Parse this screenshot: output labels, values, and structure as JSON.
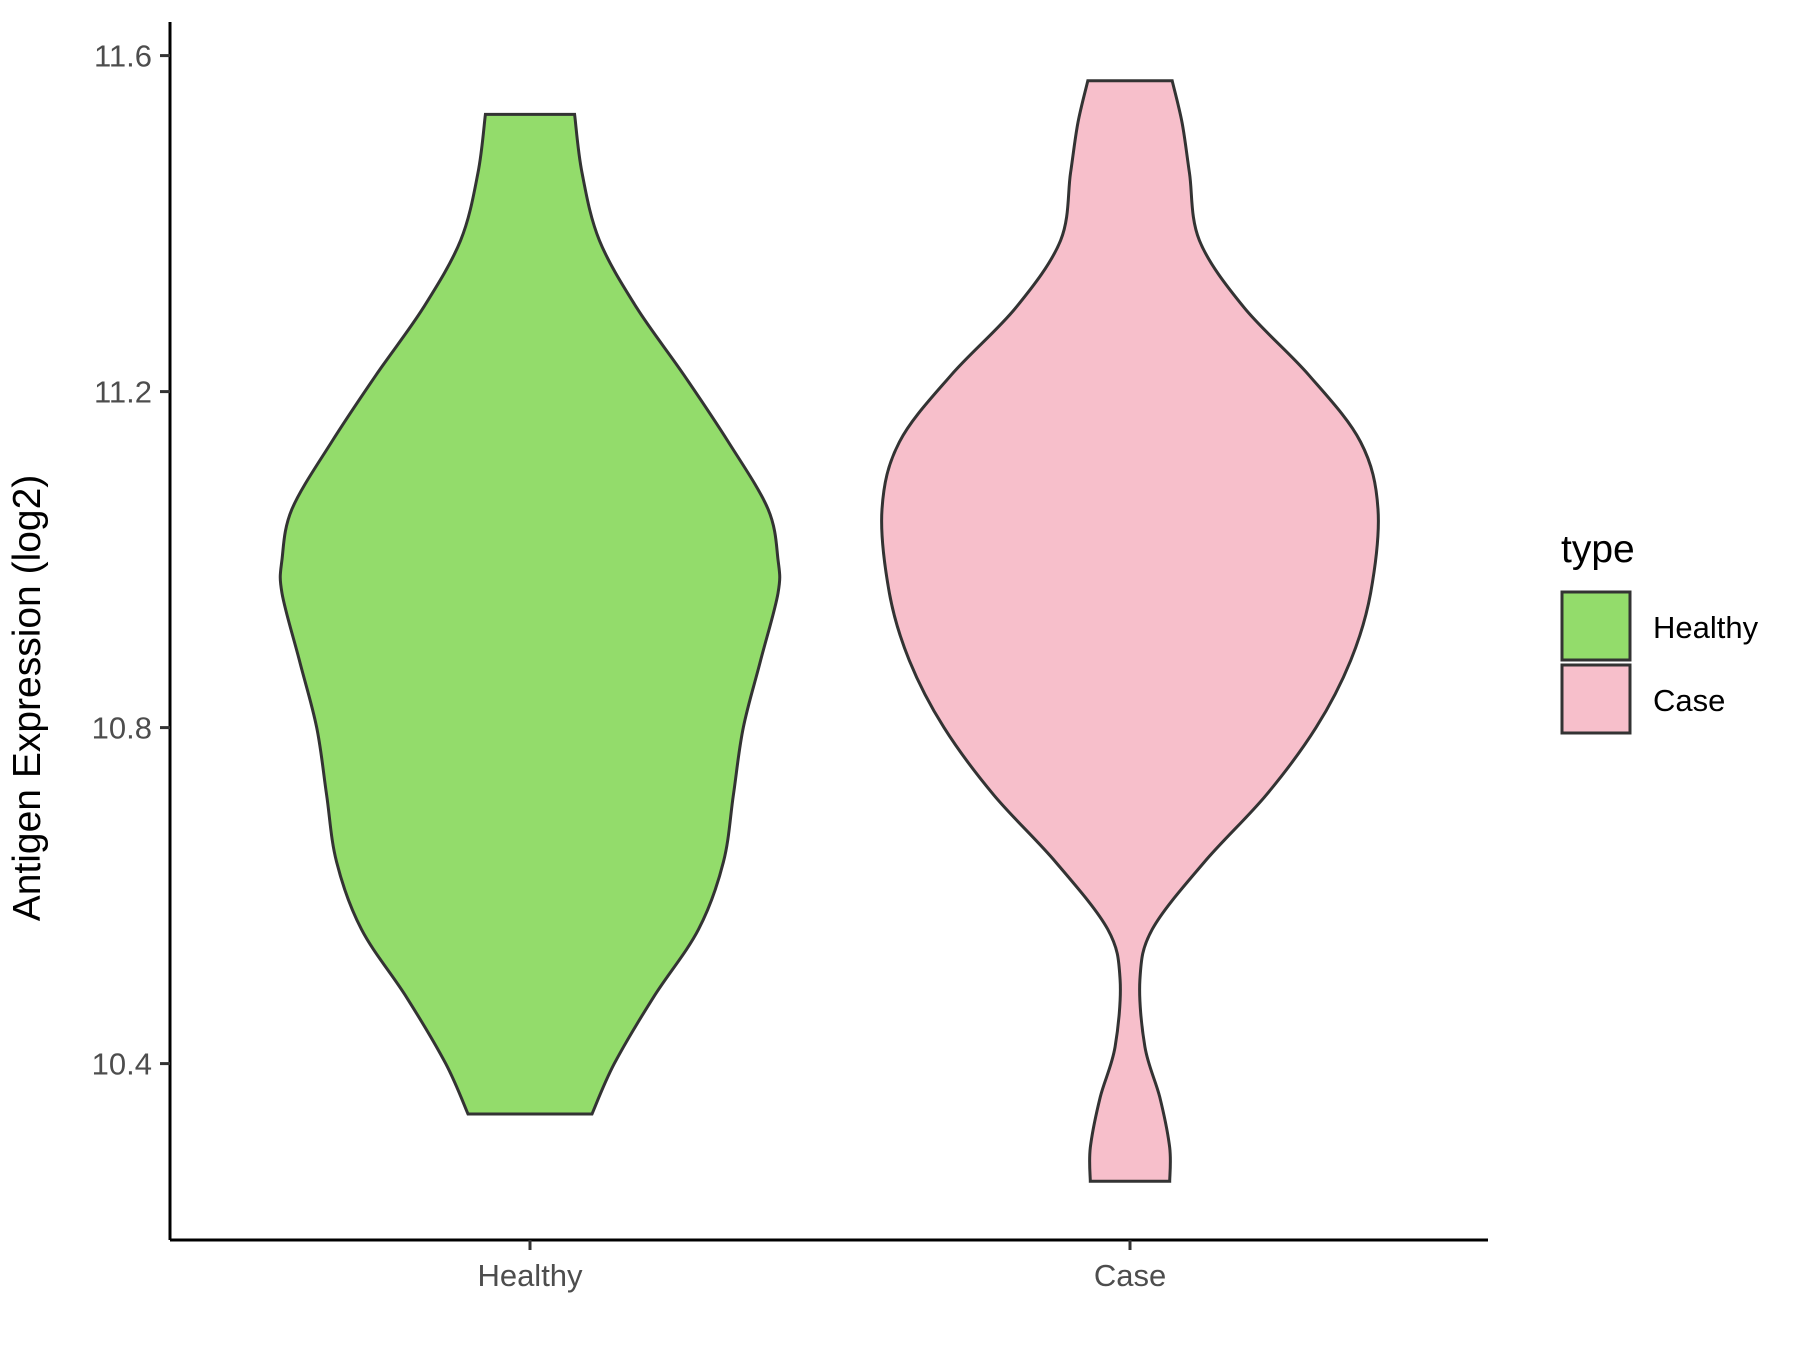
{
  "chart_data": {
    "type": "violin",
    "ylabel": "Antigen Expression (log2)",
    "xlabel": "",
    "ylim": [
      10.19,
      11.64
    ],
    "yticks": [
      "10.4",
      "10.8",
      "11.2",
      "11.6"
    ],
    "categories": [
      "Healthy",
      "Case"
    ],
    "legend": {
      "title": "type",
      "position": "right",
      "items": [
        {
          "label": "Healthy",
          "color": "#93DC6B"
        },
        {
          "label": "Case",
          "color": "#F7BFCB"
        }
      ]
    },
    "grid": false,
    "series": [
      {
        "name": "Healthy",
        "color": "#93DC6B",
        "min": 10.34,
        "max": 11.53,
        "profile": [
          [
            10.34,
            0.25
          ],
          [
            10.4,
            0.34
          ],
          [
            10.48,
            0.5
          ],
          [
            10.56,
            0.68
          ],
          [
            10.64,
            0.78
          ],
          [
            10.72,
            0.82
          ],
          [
            10.8,
            0.86
          ],
          [
            10.88,
            0.93
          ],
          [
            10.96,
            1.0
          ],
          [
            11.0,
            1.0
          ],
          [
            11.06,
            0.96
          ],
          [
            11.14,
            0.8
          ],
          [
            11.22,
            0.62
          ],
          [
            11.3,
            0.43
          ],
          [
            11.38,
            0.28
          ],
          [
            11.46,
            0.21
          ],
          [
            11.53,
            0.18
          ]
        ]
      },
      {
        "name": "Case",
        "color": "#F7BFCB",
        "min": 10.26,
        "max": 11.57,
        "profile": [
          [
            10.26,
            0.16
          ],
          [
            10.3,
            0.16
          ],
          [
            10.36,
            0.12
          ],
          [
            10.42,
            0.06
          ],
          [
            10.5,
            0.04
          ],
          [
            10.56,
            0.09
          ],
          [
            10.64,
            0.3
          ],
          [
            10.72,
            0.55
          ],
          [
            10.8,
            0.75
          ],
          [
            10.88,
            0.89
          ],
          [
            10.96,
            0.97
          ],
          [
            11.06,
            1.0
          ],
          [
            11.14,
            0.93
          ],
          [
            11.22,
            0.72
          ],
          [
            11.3,
            0.46
          ],
          [
            11.38,
            0.28
          ],
          [
            11.46,
            0.24
          ],
          [
            11.52,
            0.21
          ],
          [
            11.57,
            0.17
          ]
        ]
      }
    ]
  }
}
